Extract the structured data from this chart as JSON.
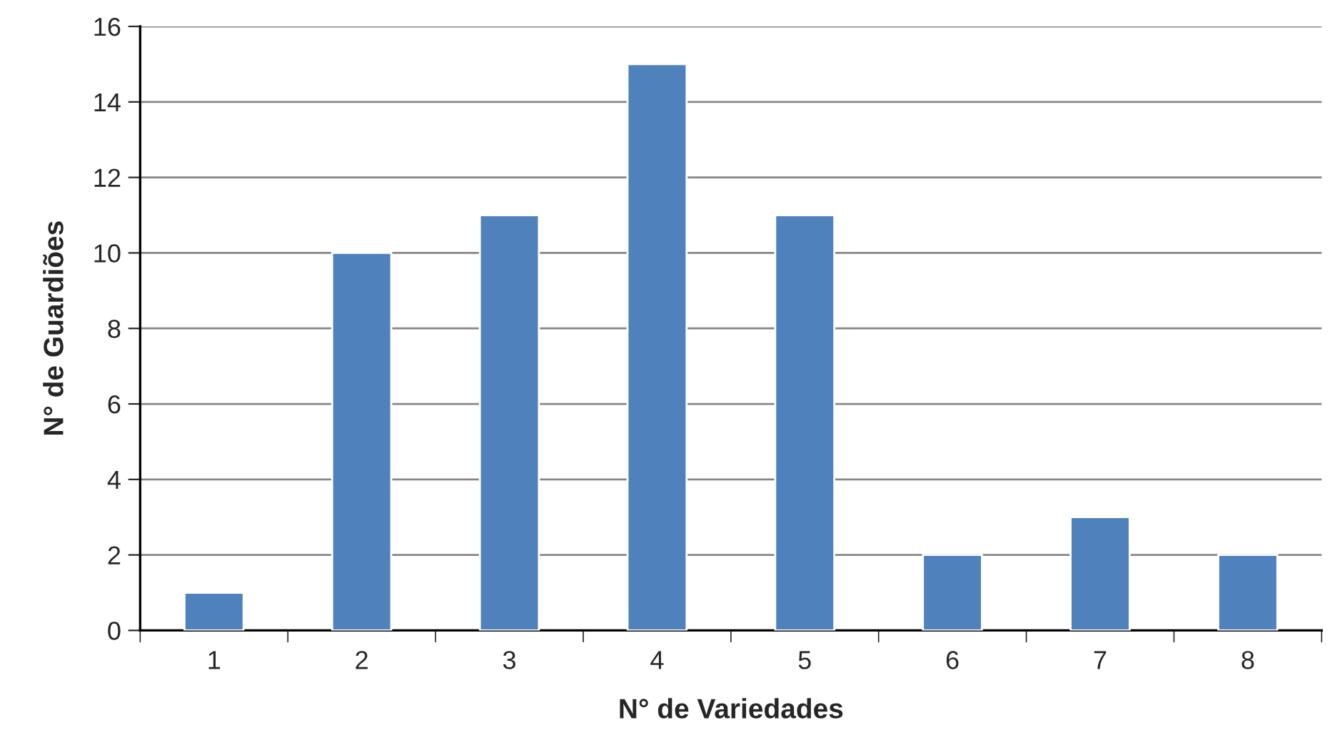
{
  "chart_data": {
    "type": "bar",
    "xlabel": "N° de Variedades",
    "ylabel": "N° de Guardiões",
    "categories": [
      "1",
      "2",
      "3",
      "4",
      "5",
      "6",
      "7",
      "8"
    ],
    "values": [
      1,
      10,
      11,
      15,
      11,
      2,
      3,
      2
    ],
    "color": "#4f81bd",
    "ylim": [
      0,
      16
    ],
    "yticks": [
      0,
      2,
      4,
      6,
      8,
      10,
      12,
      14,
      16
    ],
    "grid": "y",
    "legend": false
  }
}
